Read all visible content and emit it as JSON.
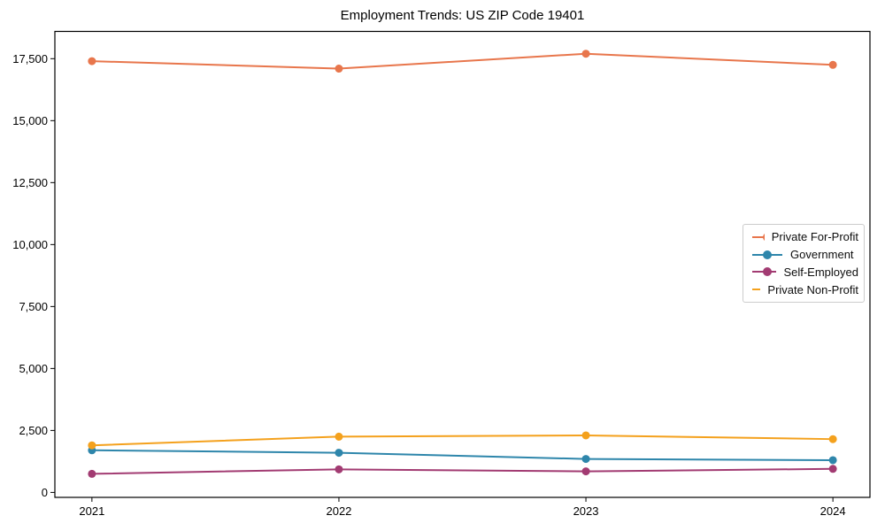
{
  "chart_data": {
    "type": "line",
    "title": "Employment Trends: US ZIP Code 19401",
    "xlabel": "",
    "ylabel": "",
    "x": [
      2021,
      2022,
      2023,
      2024
    ],
    "x_tick_labels": [
      "2021",
      "2022",
      "2023",
      "2024"
    ],
    "y_ticks": [
      0,
      2500,
      5000,
      7500,
      10000,
      12500,
      15000,
      17500
    ],
    "y_tick_labels": [
      "0",
      "2,500",
      "5,000",
      "7,500",
      "10,000",
      "12,500",
      "15,000",
      "17,500"
    ],
    "xlim": [
      2020.85,
      2024.15
    ],
    "ylim": [
      -200,
      18600
    ],
    "grid": false,
    "legend_position": "center right",
    "marker": "circle",
    "series": [
      {
        "name": "Private For-Profit",
        "color": "#E8764C",
        "values": [
          17400,
          17100,
          17700,
          17250
        ]
      },
      {
        "name": "Government",
        "color": "#2E86AB",
        "values": [
          1700,
          1600,
          1350,
          1300
        ]
      },
      {
        "name": "Self-Employed",
        "color": "#A23B72",
        "values": [
          750,
          930,
          850,
          950
        ]
      },
      {
        "name": "Private Non-Profit",
        "color": "#F4A11D",
        "values": [
          1900,
          2250,
          2300,
          2150
        ]
      }
    ],
    "axis_color": "#000000",
    "background_color": "#ffffff"
  }
}
